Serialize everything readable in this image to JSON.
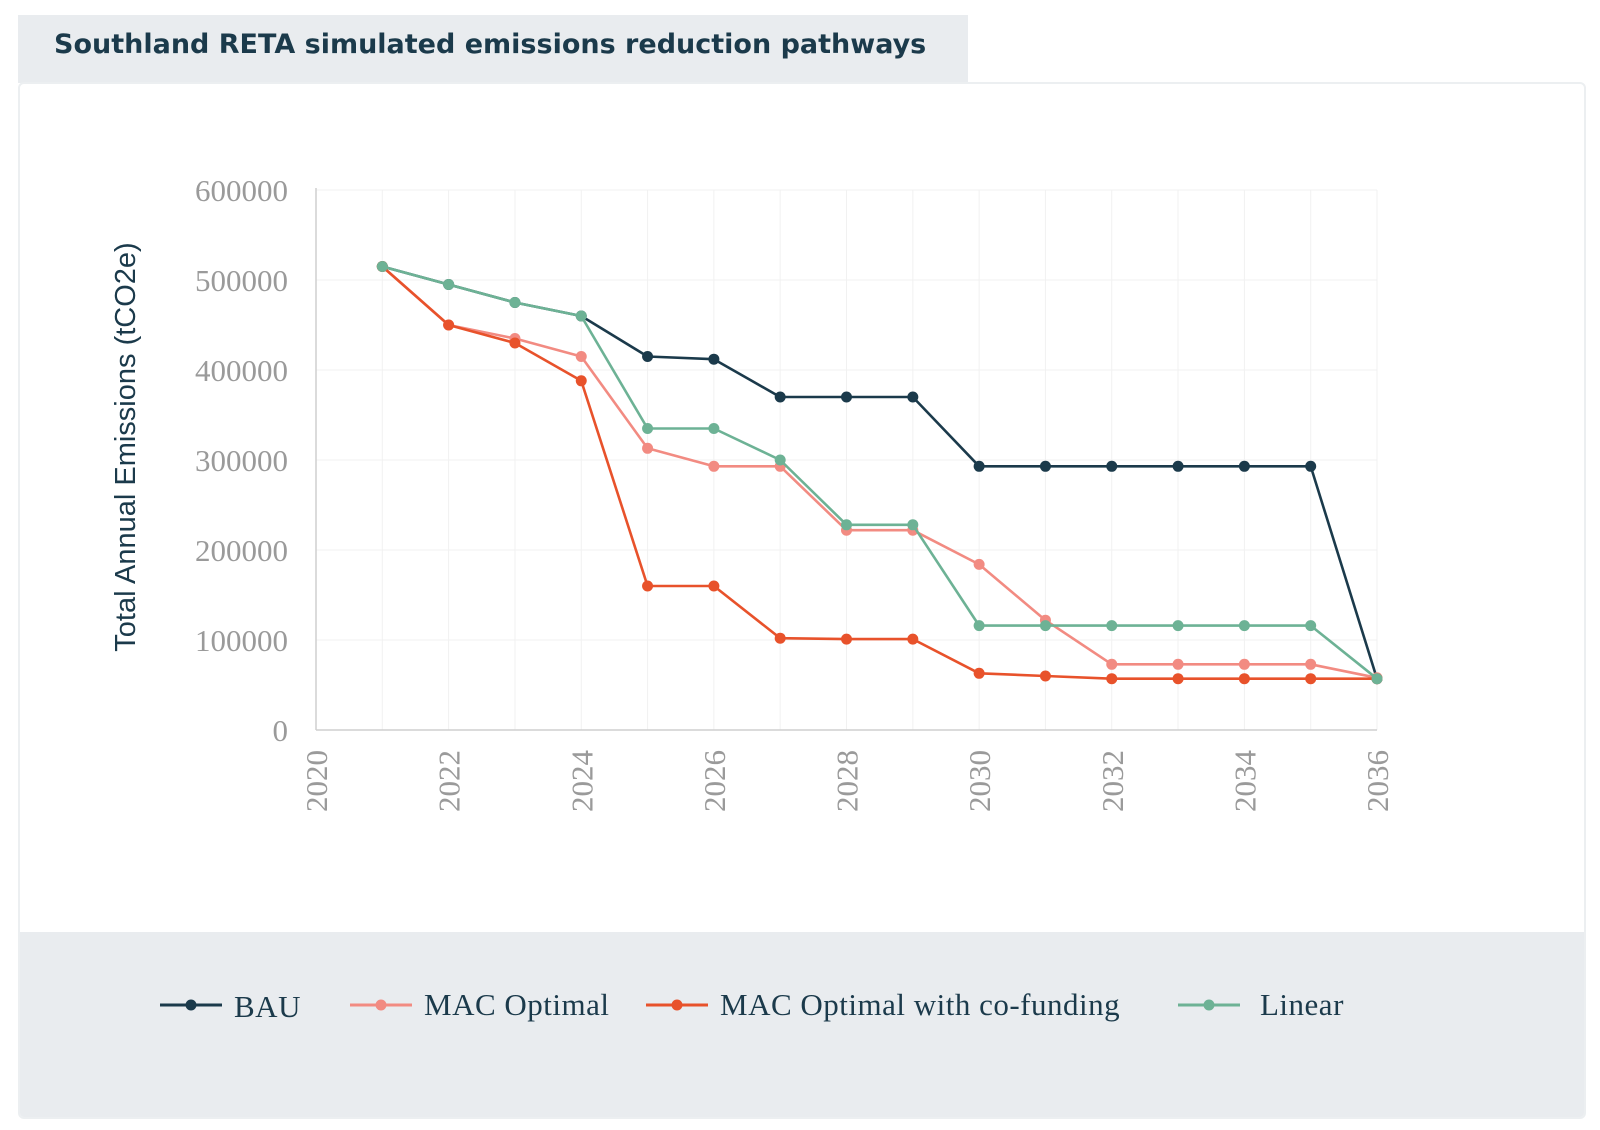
{
  "header": {
    "title": "Southland RETA simulated emissions reduction pathways"
  },
  "colors": {
    "BAU": "#1b3a4b",
    "MAC Optimal": "#f28b82",
    "MAC Optimal with co-funding": "#e8522b",
    "Linear": "#6db295",
    "axis_text": "#9a9a9a",
    "ylabel_text": "#1b3a4b",
    "grid": "#f1f1f1"
  },
  "chart_data": {
    "type": "line",
    "title": "Southland RETA simulated emissions reduction pathways",
    "xlabel": "",
    "ylabel": "Total Annual Emissions (tCO2e)",
    "xlim": [
      2020,
      2036
    ],
    "ylim": [
      0,
      600000
    ],
    "x_ticks": [
      "2020",
      "2022",
      "2024",
      "2026",
      "2028",
      "2030",
      "2032",
      "2034",
      "2036"
    ],
    "y_ticks": [
      "600000",
      "500000",
      "400000",
      "300000",
      "200000",
      "100000",
      "0"
    ],
    "grid": true,
    "legend_position": "bottom",
    "x": [
      2021,
      2022,
      2023,
      2024,
      2025,
      2026,
      2027,
      2028,
      2029,
      2030,
      2031,
      2032,
      2033,
      2034,
      2035,
      2036
    ],
    "series": [
      {
        "name": "BAU",
        "values": [
          515000,
          495000,
          475000,
          460000,
          415000,
          412000,
          370000,
          370000,
          370000,
          293000,
          293000,
          293000,
          293000,
          293000,
          293000,
          57000
        ]
      },
      {
        "name": "MAC Optimal",
        "values": [
          515000,
          450000,
          435000,
          415000,
          313000,
          293000,
          293000,
          222000,
          222000,
          184000,
          122000,
          73000,
          73000,
          73000,
          73000,
          58000
        ]
      },
      {
        "name": "MAC Optimal with co-funding",
        "values": [
          515000,
          450000,
          430000,
          388000,
          160000,
          160000,
          102000,
          101000,
          101000,
          63000,
          60000,
          57000,
          57000,
          57000,
          57000,
          57000
        ]
      },
      {
        "name": "Linear",
        "values": [
          515000,
          495000,
          475000,
          460000,
          335000,
          335000,
          300000,
          228000,
          228000,
          116000,
          116000,
          116000,
          116000,
          116000,
          116000,
          57000
        ]
      }
    ]
  }
}
